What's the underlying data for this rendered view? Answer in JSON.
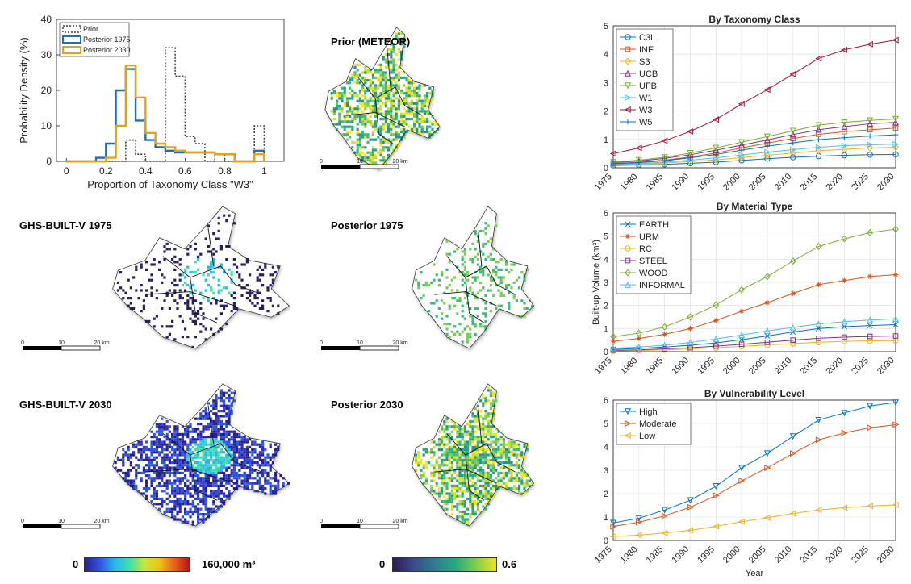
{
  "histogram": {
    "xlabel": "Proportion of Taxonomy Class \"W3\"",
    "ylabel": "Probability Density (%)",
    "xlim": [
      -0.05,
      1.1
    ],
    "ylim": [
      0,
      40
    ],
    "xticks": [
      "0",
      "0.2",
      "0.4",
      "0.6",
      "0.8",
      "1"
    ],
    "yticks": [
      "0",
      "10",
      "20",
      "30",
      "40"
    ],
    "bin_edges": [
      0,
      0.05,
      0.1,
      0.15,
      0.2,
      0.25,
      0.3,
      0.35,
      0.4,
      0.45,
      0.5,
      0.55,
      0.6,
      0.65,
      0.7,
      0.75,
      0.8,
      0.85,
      0.9,
      0.95,
      1.0
    ],
    "series": [
      {
        "name": "Prior",
        "color": "#404040",
        "dash": "2,2",
        "values": [
          0,
          0,
          0,
          0,
          0,
          0,
          6,
          2,
          0,
          0,
          32,
          24,
          7,
          5,
          0,
          2,
          0,
          0,
          0,
          10
        ]
      },
      {
        "name": "Posterior 1975",
        "color": "#1f6fb4",
        "dash": "",
        "values": [
          0,
          0,
          0,
          1,
          5,
          20,
          26,
          11.5,
          6,
          4,
          3,
          2.5,
          2.5,
          2.5,
          2.5,
          2,
          2,
          0,
          0,
          3
        ]
      },
      {
        "name": "Posterior 2030",
        "color": "#e3a21a",
        "dash": "",
        "values": [
          0,
          0,
          0,
          0,
          1,
          10,
          27,
          18,
          8,
          5,
          4,
          3,
          2.5,
          2.5,
          2.5,
          2,
          2,
          0,
          0,
          2
        ]
      }
    ]
  },
  "maps": {
    "prior": {
      "title": "Prior (METEOR)"
    },
    "ghs1975": {
      "title": "GHS-BUILT-V 1975"
    },
    "post1975": {
      "title": "Posterior 1975"
    },
    "ghs2030": {
      "title": "GHS-BUILT-V 2030"
    },
    "post2030": {
      "title": "Posterior 2030"
    },
    "scalebar": {
      "l0": "0",
      "l10": "10",
      "l20": "20 km"
    }
  },
  "colorbars": {
    "volume": {
      "min": "0",
      "max": "160,000 m³"
    },
    "proportion": {
      "min": "0",
      "max": "0.6"
    }
  },
  "chart_data": [
    {
      "type": "line",
      "title": "By Taxonomy Class",
      "x": [
        1975,
        1980,
        1985,
        1990,
        1995,
        2000,
        2005,
        2010,
        2015,
        2020,
        2025,
        2030
      ],
      "ylim": [
        0,
        5
      ],
      "yticks": [
        "0",
        "1",
        "2",
        "3",
        "4",
        "5"
      ],
      "legend": "top-left",
      "series": [
        {
          "name": "C3L",
          "color": "#0072bd",
          "marker": "circle",
          "values": [
            0.08,
            0.1,
            0.12,
            0.16,
            0.2,
            0.26,
            0.32,
            0.37,
            0.41,
            0.44,
            0.46,
            0.47
          ]
        },
        {
          "name": "INF",
          "color": "#d95319",
          "marker": "square",
          "values": [
            0.15,
            0.2,
            0.27,
            0.38,
            0.52,
            0.7,
            0.87,
            1.03,
            1.18,
            1.27,
            1.34,
            1.4
          ]
        },
        {
          "name": "S3",
          "color": "#edb120",
          "marker": "diamond",
          "values": [
            0.1,
            0.13,
            0.17,
            0.22,
            0.28,
            0.36,
            0.44,
            0.52,
            0.6,
            0.65,
            0.7,
            0.72
          ]
        },
        {
          "name": "UCB",
          "color": "#7e2f8e",
          "marker": "triangle-up",
          "values": [
            0.18,
            0.24,
            0.33,
            0.46,
            0.62,
            0.8,
            0.98,
            1.17,
            1.34,
            1.45,
            1.55,
            1.6
          ]
        },
        {
          "name": "UFB",
          "color": "#77ac30",
          "marker": "triangle-down",
          "values": [
            0.2,
            0.27,
            0.37,
            0.52,
            0.7,
            0.9,
            1.1,
            1.3,
            1.5,
            1.6,
            1.67,
            1.72
          ]
        },
        {
          "name": "W1",
          "color": "#4dbeee",
          "marker": "triangle-right",
          "values": [
            0.12,
            0.15,
            0.2,
            0.27,
            0.35,
            0.45,
            0.55,
            0.64,
            0.72,
            0.78,
            0.81,
            0.83
          ]
        },
        {
          "name": "W3",
          "color": "#a2142f",
          "marker": "triangle-left",
          "values": [
            0.5,
            0.7,
            0.95,
            1.28,
            1.7,
            2.25,
            2.75,
            3.3,
            3.85,
            4.15,
            4.35,
            4.5
          ]
        },
        {
          "name": "W5",
          "color": "#0072bd",
          "marker": "plus",
          "values": [
            0.14,
            0.18,
            0.25,
            0.35,
            0.47,
            0.62,
            0.76,
            0.88,
            0.99,
            1.06,
            1.12,
            1.16
          ]
        }
      ]
    },
    {
      "type": "line",
      "title": "By Material Type",
      "ylabel": "Built-up Volume (km³)",
      "x": [
        1975,
        1980,
        1985,
        1990,
        1995,
        2000,
        2005,
        2010,
        2015,
        2020,
        2025,
        2030
      ],
      "ylim": [
        0,
        6
      ],
      "yticks": [
        "0",
        "1",
        "2",
        "3",
        "4",
        "5",
        "6"
      ],
      "legend": "top-left",
      "series": [
        {
          "name": "EARTH",
          "color": "#0072bd",
          "marker": "cross",
          "values": [
            0.1,
            0.14,
            0.2,
            0.28,
            0.38,
            0.52,
            0.68,
            0.85,
            1.0,
            1.08,
            1.13,
            1.17
          ]
        },
        {
          "name": "URM",
          "color": "#d95319",
          "marker": "star",
          "values": [
            0.45,
            0.57,
            0.75,
            1.0,
            1.35,
            1.75,
            2.12,
            2.52,
            2.9,
            3.08,
            3.25,
            3.33
          ]
        },
        {
          "name": "RC",
          "color": "#edb120",
          "marker": "circle",
          "values": [
            0.03,
            0.05,
            0.08,
            0.12,
            0.17,
            0.23,
            0.29,
            0.35,
            0.41,
            0.45,
            0.47,
            0.48
          ]
        },
        {
          "name": "STEEL",
          "color": "#7e2f8e",
          "marker": "square",
          "values": [
            0.06,
            0.08,
            0.12,
            0.17,
            0.24,
            0.32,
            0.41,
            0.5,
            0.58,
            0.63,
            0.66,
            0.68
          ]
        },
        {
          "name": "WOOD",
          "color": "#77ac30",
          "marker": "diamond",
          "values": [
            0.65,
            0.8,
            1.07,
            1.5,
            2.02,
            2.68,
            3.25,
            3.92,
            4.55,
            4.88,
            5.15,
            5.3
          ]
        },
        {
          "name": "INFORMAL",
          "color": "#4dbeee",
          "marker": "triangle-up",
          "values": [
            0.15,
            0.2,
            0.28,
            0.4,
            0.55,
            0.72,
            0.9,
            1.05,
            1.2,
            1.3,
            1.37,
            1.42
          ]
        }
      ]
    },
    {
      "type": "line",
      "title": "By Vulnerability Level",
      "xlabel": "Year",
      "x": [
        1975,
        1980,
        1985,
        1990,
        1995,
        2000,
        2005,
        2010,
        2015,
        2020,
        2025,
        2030
      ],
      "ylim": [
        0,
        6
      ],
      "yticks": [
        "0",
        "1",
        "2",
        "3",
        "4",
        "5",
        "6"
      ],
      "legend": "top-left",
      "series": [
        {
          "name": "High",
          "color": "#0072bd",
          "marker": "triangle-down",
          "values": [
            0.75,
            0.95,
            1.3,
            1.72,
            2.32,
            3.1,
            3.72,
            4.45,
            5.15,
            5.45,
            5.75,
            5.9
          ]
        },
        {
          "name": "Moderate",
          "color": "#d95319",
          "marker": "triangle-right",
          "values": [
            0.6,
            0.78,
            1.05,
            1.42,
            1.92,
            2.55,
            3.1,
            3.72,
            4.3,
            4.6,
            4.82,
            4.95
          ]
        },
        {
          "name": "Low",
          "color": "#edb120",
          "marker": "triangle-left",
          "values": [
            0.17,
            0.23,
            0.32,
            0.43,
            0.6,
            0.8,
            0.97,
            1.15,
            1.3,
            1.4,
            1.47,
            1.52
          ]
        }
      ]
    }
  ]
}
